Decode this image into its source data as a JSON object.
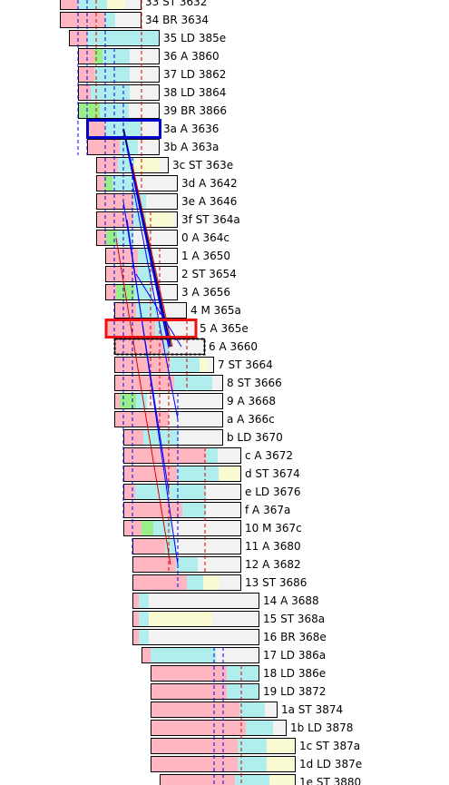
{
  "colors": {
    "pink": "#ffb6c1",
    "cyan": "#b0eeee",
    "green": "#99ee88",
    "yellow": "#fafad2",
    "empty": "#f2f2f2",
    "border": "#000000",
    "highlight_blue": "#0000cc",
    "highlight_red": "#ee1111",
    "trace_blue": "#0000ff",
    "trace_red": "#dd0000",
    "trace_navy": "#000080"
  },
  "rows": [
    {
      "label": "33 ST 3632",
      "segs": [
        [
          "pink",
          0.22
        ],
        [
          "cyan",
          0.36
        ],
        [
          "yellow",
          0.22
        ],
        [
          "empty",
          0.2
        ]
      ]
    },
    {
      "label": "34 BR 3634",
      "segs": [
        [
          "pink",
          0.55
        ],
        [
          "cyan",
          0.12
        ],
        [
          "empty",
          0.33
        ]
      ]
    },
    {
      "label": "35 LD 385e",
      "segs": [
        [
          "pink",
          0.2
        ],
        [
          "cyan",
          0.8
        ]
      ]
    },
    {
      "label": "36 A 3860",
      "segs": [
        [
          "pink",
          0.2
        ],
        [
          "green",
          0.1
        ],
        [
          "cyan",
          0.33
        ],
        [
          "empty",
          0.37
        ]
      ]
    },
    {
      "label": "37 LD 3862",
      "segs": [
        [
          "pink",
          0.2
        ],
        [
          "cyan",
          0.43
        ],
        [
          "empty",
          0.37
        ]
      ]
    },
    {
      "label": "38 LD 3864",
      "segs": [
        [
          "pink",
          0.15
        ],
        [
          "cyan",
          0.48
        ],
        [
          "empty",
          0.37
        ]
      ]
    },
    {
      "label": "39 BR 3866",
      "segs": [
        [
          "pink",
          0.0
        ],
        [
          "green",
          0.27
        ],
        [
          "cyan",
          0.36
        ],
        [
          "empty",
          0.37
        ]
      ]
    },
    {
      "label": "3a A 3636",
      "segs": [
        [
          "pink",
          0.25
        ],
        [
          "cyan",
          0.5
        ],
        [
          "empty",
          0.25
        ]
      ]
    },
    {
      "label": "3b A 363a",
      "segs": [
        [
          "pink",
          0.45
        ],
        [
          "cyan",
          0.25
        ],
        [
          "empty",
          0.3
        ]
      ]
    },
    {
      "label": "3c ST 363e",
      "segs": [
        [
          "pink",
          0.3
        ],
        [
          "cyan",
          0.22
        ],
        [
          "yellow",
          0.35
        ],
        [
          "empty",
          0.13
        ]
      ]
    },
    {
      "label": "3d A 3642",
      "segs": [
        [
          "pink",
          0.1
        ],
        [
          "green",
          0.1
        ],
        [
          "cyan",
          0.25
        ],
        [
          "empty",
          0.55
        ]
      ]
    },
    {
      "label": "3e A 3646",
      "segs": [
        [
          "pink",
          0.45
        ],
        [
          "cyan",
          0.15
        ],
        [
          "empty",
          0.4
        ]
      ]
    },
    {
      "label": "3f ST 364a",
      "segs": [
        [
          "pink",
          0.45
        ],
        [
          "cyan",
          0.15
        ],
        [
          "yellow",
          0.33
        ],
        [
          "empty",
          0.07
        ]
      ]
    },
    {
      "label": "0 A 364c",
      "segs": [
        [
          "pink",
          0.12
        ],
        [
          "green",
          0.13
        ],
        [
          "cyan",
          0.2
        ],
        [
          "empty",
          0.55
        ]
      ]
    },
    {
      "label": "1 A 3650",
      "segs": [
        [
          "pink",
          0.45
        ],
        [
          "cyan",
          0.2
        ],
        [
          "empty",
          0.35
        ]
      ]
    },
    {
      "label": "2 ST 3654",
      "segs": [
        [
          "pink",
          0.45
        ],
        [
          "cyan",
          0.2
        ],
        [
          "empty",
          0.35
        ]
      ]
    },
    {
      "label": "3 A 3656",
      "segs": [
        [
          "pink",
          0.15
        ],
        [
          "green",
          0.25
        ],
        [
          "cyan",
          0.25
        ],
        [
          "empty",
          0.35
        ]
      ]
    },
    {
      "label": "4 M 365a",
      "segs": [
        [
          "pink",
          0.3
        ],
        [
          "cyan",
          0.3
        ],
        [
          "empty",
          0.4
        ]
      ]
    },
    {
      "label": "5 A 365e",
      "segs": [
        [
          "pink",
          0.55
        ],
        [
          "cyan",
          0.1
        ],
        [
          "empty",
          0.35
        ]
      ]
    },
    {
      "label": "6 A 3660",
      "segs": [
        [
          "pink",
          0.55
        ],
        [
          "cyan",
          0.05
        ],
        [
          "empty",
          0.4
        ]
      ]
    },
    {
      "label": "7 ST 3664",
      "segs": [
        [
          "pink",
          0.55
        ],
        [
          "cyan",
          0.3
        ],
        [
          "yellow",
          0.08
        ],
        [
          "empty",
          0.07
        ]
      ]
    },
    {
      "label": "8 ST 3666",
      "segs": [
        [
          "pink",
          0.55
        ],
        [
          "cyan",
          0.35
        ],
        [
          "empty",
          0.1
        ]
      ]
    },
    {
      "label": "9 A 3668",
      "segs": [
        [
          "pink",
          0.05
        ],
        [
          "green",
          0.15
        ],
        [
          "cyan",
          0.1
        ],
        [
          "empty",
          0.7
        ]
      ]
    },
    {
      "label": "a A 366c",
      "segs": [
        [
          "pink",
          0.5
        ],
        [
          "empty",
          0.5
        ]
      ]
    },
    {
      "label": "b LD 3670",
      "segs": [
        [
          "pink",
          0.2
        ],
        [
          "cyan",
          0.35
        ],
        [
          "empty",
          0.45
        ]
      ]
    },
    {
      "label": "c A 3672",
      "segs": [
        [
          "pink",
          0.7
        ],
        [
          "cyan",
          0.1
        ],
        [
          "empty",
          0.2
        ]
      ]
    },
    {
      "label": "d ST 3674",
      "segs": [
        [
          "pink",
          0.45
        ],
        [
          "cyan",
          0.35
        ],
        [
          "yellow",
          0.2
        ]
      ]
    },
    {
      "label": "e LD 3676",
      "segs": [
        [
          "pink",
          0.1
        ],
        [
          "cyan",
          0.6
        ],
        [
          "empty",
          0.3
        ]
      ]
    },
    {
      "label": "f A 367a",
      "segs": [
        [
          "pink",
          0.5
        ],
        [
          "cyan",
          0.2
        ],
        [
          "empty",
          0.3
        ]
      ]
    },
    {
      "label": "10 M 367c",
      "segs": [
        [
          "pink",
          0.15
        ],
        [
          "green",
          0.1
        ],
        [
          "cyan",
          0.15
        ],
        [
          "empty",
          0.6
        ]
      ]
    },
    {
      "label": "11 A 3680",
      "segs": [
        [
          "pink",
          0.3
        ],
        [
          "cyan",
          0.1
        ],
        [
          "empty",
          0.6
        ]
      ]
    },
    {
      "label": "12 A 3682",
      "segs": [
        [
          "pink",
          0.4
        ],
        [
          "cyan",
          0.2
        ],
        [
          "empty",
          0.4
        ]
      ]
    },
    {
      "label": "13 ST 3686",
      "segs": [
        [
          "pink",
          0.5
        ],
        [
          "cyan",
          0.15
        ],
        [
          "yellow",
          0.15
        ],
        [
          "empty",
          0.2
        ]
      ]
    },
    {
      "label": "14 A 3688",
      "segs": [
        [
          "pink",
          0.05
        ],
        [
          "cyan",
          0.08
        ],
        [
          "empty",
          0.87
        ]
      ]
    },
    {
      "label": "15 ST 368a",
      "segs": [
        [
          "pink",
          0.05
        ],
        [
          "cyan",
          0.08
        ],
        [
          "yellow",
          0.5
        ],
        [
          "empty",
          0.37
        ]
      ]
    },
    {
      "label": "16 BR 368e",
      "segs": [
        [
          "pink",
          0.05
        ],
        [
          "cyan",
          0.08
        ],
        [
          "empty",
          0.87
        ]
      ]
    },
    {
      "label": "17 LD 386a",
      "segs": [
        [
          "pink",
          0.08
        ],
        [
          "cyan",
          0.55
        ],
        [
          "empty",
          0.37
        ]
      ]
    },
    {
      "label": "18 LD 386e",
      "segs": [
        [
          "pink",
          0.7
        ],
        [
          "cyan",
          0.3
        ]
      ]
    },
    {
      "label": "19 LD 3872",
      "segs": [
        [
          "pink",
          0.7
        ],
        [
          "cyan",
          0.3
        ]
      ]
    },
    {
      "label": "1a ST 3874",
      "segs": [
        [
          "pink",
          0.7
        ],
        [
          "cyan",
          0.2
        ],
        [
          "empty",
          0.1
        ]
      ]
    },
    {
      "label": "1b LD 3878",
      "segs": [
        [
          "pink",
          0.7
        ],
        [
          "cyan",
          0.2
        ],
        [
          "empty",
          0.1
        ]
      ]
    },
    {
      "label": "1c ST 387a",
      "segs": [
        [
          "pink",
          0.6
        ],
        [
          "cyan",
          0.2
        ],
        [
          "yellow",
          0.2
        ]
      ]
    },
    {
      "label": "1d LD 387e",
      "segs": [
        [
          "pink",
          0.6
        ],
        [
          "cyan",
          0.2
        ],
        [
          "yellow",
          0.2
        ]
      ]
    },
    {
      "label": "1e ST 3880",
      "segs": [
        [
          "pink",
          0.55
        ],
        [
          "cyan",
          0.25
        ],
        [
          "yellow",
          0.2
        ]
      ]
    }
  ],
  "highlights": {
    "blue_row": "3a A 3636",
    "red_row": "5 A 365e",
    "current_row": "6 A 3660"
  }
}
